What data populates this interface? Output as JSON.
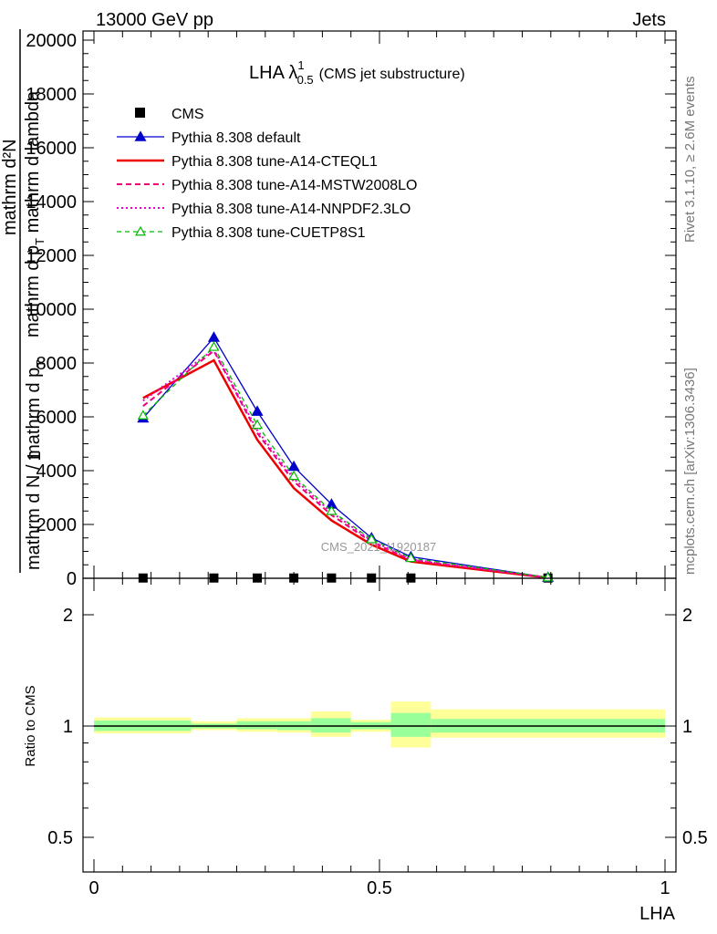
{
  "header": {
    "left": "13000 GeV pp",
    "right": "Jets"
  },
  "side_labels": {
    "rivet": "Rivet 3.1.10, ≥ 2.6M events",
    "mcplots": "mcplots.cern.ch [arXiv:1306.3436]"
  },
  "watermark": "CMS_2021_I1920187",
  "chart_data": {
    "type": "line",
    "title": "LHA λ",
    "title_sup": "1",
    "title_sub": "0.5",
    "title_suffix": "(CMS jet substructure)",
    "xlabel": "LHA",
    "ylabel_top": "1",
    "ylabel_frac_num": "mathrm d²N",
    "ylabel_frac_den": "mathrm d p",
    "ylabel_frac_den_sub": "T",
    "ylabel_frac_den_tail": " mathrm d lambda",
    "ylabel_left": "mathrm d N / mathrm d p",
    "ylabel_left_sub": "T",
    "xlim": [
      0,
      1
    ],
    "ylim": [
      0,
      20000
    ],
    "x_ticks": [
      0,
      0.5,
      1
    ],
    "x_tick_labels": [
      "0",
      "0.5",
      "1"
    ],
    "y_ticks": [
      0,
      2000,
      4000,
      6000,
      8000,
      10000,
      12000,
      14000,
      16000,
      18000,
      20000
    ],
    "y_tick_labels": [
      "0",
      "2000",
      "4000",
      "6000",
      "8000",
      "10000",
      "12000",
      "14000",
      "16000",
      "18000",
      "20000"
    ],
    "legend_position": "top-left",
    "x": [
      0.086,
      0.21,
      0.286,
      0.35,
      0.416,
      0.486,
      0.555,
      0.795
    ],
    "series": [
      {
        "name": "CMS",
        "style": "data",
        "color": "#000000",
        "values": [
          10,
          10,
          10,
          10,
          10,
          10,
          10,
          10
        ]
      },
      {
        "name": "Pythia 8.308 default",
        "style": "solid-triangle",
        "color": "#0000cc",
        "values": [
          5950,
          8950,
          6200,
          4150,
          2750,
          1500,
          800,
          30
        ]
      },
      {
        "name": "Pythia 8.308 tune-A14-CTEQL1",
        "style": "solid-thick",
        "color": "#ee0000",
        "values": [
          6700,
          8100,
          5150,
          3350,
          2150,
          1250,
          620,
          20
        ]
      },
      {
        "name": "Pythia 8.308 tune-A14-MSTW2008LO",
        "style": "dashed",
        "color": "#ee0077",
        "values": [
          6400,
          8450,
          5400,
          3600,
          2350,
          1350,
          680,
          25
        ]
      },
      {
        "name": "Pythia 8.308 tune-A14-NNPDF2.3LO",
        "style": "dotted",
        "color": "#ee00cc",
        "values": [
          6600,
          8500,
          5500,
          3700,
          2450,
          1400,
          700,
          25
        ]
      },
      {
        "name": "Pythia 8.308 tune-CUETP8S1",
        "style": "dashed-open-triangle",
        "color": "#00bb00",
        "values": [
          6050,
          8600,
          5700,
          3800,
          2500,
          1450,
          750,
          30
        ]
      }
    ],
    "ratio": {
      "ylabel": "Ratio to CMS",
      "y_ticks": [
        0.5,
        1,
        2
      ],
      "y_tick_labels": [
        "0.5",
        "1",
        "2"
      ],
      "ylim": [
        0.4,
        2.3
      ],
      "log_scale": true,
      "bins": [
        {
          "lo": 0.0,
          "hi": 0.17,
          "green": [
            0.97,
            1.035
          ],
          "yellow": [
            0.955,
            1.055
          ]
        },
        {
          "lo": 0.17,
          "hi": 0.25,
          "green": [
            0.985,
            1.015
          ],
          "yellow": [
            0.975,
            1.03
          ]
        },
        {
          "lo": 0.25,
          "hi": 0.32,
          "green": [
            0.98,
            1.03
          ],
          "yellow": [
            0.965,
            1.05
          ]
        },
        {
          "lo": 0.32,
          "hi": 0.38,
          "green": [
            0.975,
            1.03
          ],
          "yellow": [
            0.96,
            1.05
          ]
        },
        {
          "lo": 0.38,
          "hi": 0.45,
          "green": [
            0.96,
            1.05
          ],
          "yellow": [
            0.935,
            1.095
          ]
        },
        {
          "lo": 0.45,
          "hi": 0.52,
          "green": [
            0.98,
            1.025
          ],
          "yellow": [
            0.965,
            1.04
          ]
        },
        {
          "lo": 0.52,
          "hi": 0.59,
          "green": [
            0.935,
            1.085
          ],
          "yellow": [
            0.875,
            1.165
          ]
        },
        {
          "lo": 0.59,
          "hi": 1.0,
          "green": [
            0.96,
            1.045
          ],
          "yellow": [
            0.93,
            1.11
          ]
        }
      ]
    }
  }
}
